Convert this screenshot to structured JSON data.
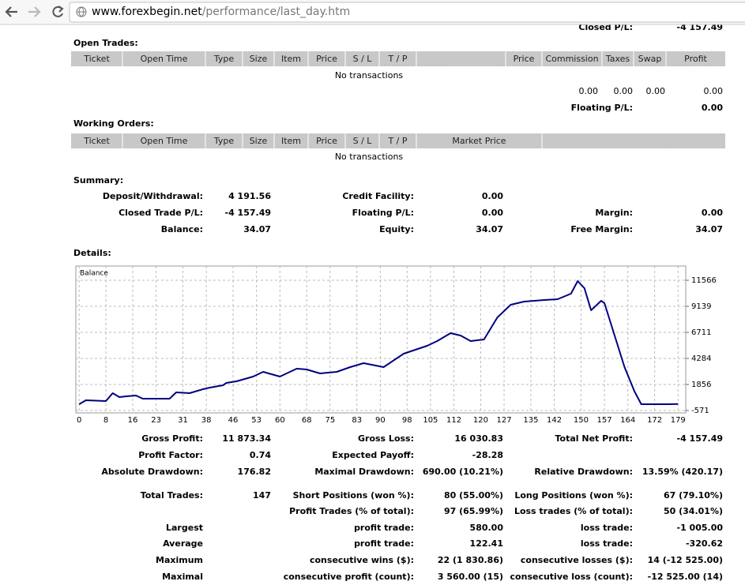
{
  "browser": {
    "url_host": "www.forexbegin.net",
    "url_path": "/performance/last_day.htm"
  },
  "top_cut": {
    "label": "Closed P/L:",
    "value": "-4 157.49"
  },
  "open_trades": {
    "title": "Open Trades:",
    "headers": [
      "Ticket",
      "Open Time",
      "Type",
      "Size",
      "Item",
      "Price",
      "S / L",
      "T / P",
      "Price",
      "Commission",
      "Taxes",
      "Swap",
      "Profit"
    ],
    "empty": "No transactions",
    "totals": [
      "0.00",
      "0.00",
      "0.00",
      "0.00"
    ],
    "floating_label": "Floating P/L:",
    "floating_value": "0.00"
  },
  "working_orders": {
    "title": "Working Orders:",
    "headers": [
      "Ticket",
      "Open Time",
      "Type",
      "Size",
      "Item",
      "Price",
      "S / L",
      "T / P",
      "Market Price"
    ],
    "empty": "No transactions"
  },
  "summary": {
    "title": "Summary:",
    "rows": [
      [
        "Deposit/Withdrawal:",
        "4 191.56",
        "Credit Facility:",
        "0.00",
        null,
        null
      ],
      [
        "Closed Trade P/L:",
        "-4 157.49",
        "Floating P/L:",
        "0.00",
        "Margin:",
        "0.00"
      ],
      [
        "Balance:",
        "34.07",
        "Equity:",
        "34.07",
        "Free Margin:",
        "34.07"
      ]
    ]
  },
  "details": {
    "title": "Details:"
  },
  "chart_data": {
    "type": "line",
    "x": [
      0,
      2,
      8,
      10,
      12,
      14,
      17,
      19,
      27,
      29,
      33,
      37,
      39,
      43,
      44,
      47,
      52,
      55,
      60,
      65,
      68,
      72,
      77,
      81,
      85,
      91,
      97,
      104,
      107,
      111,
      114,
      117,
      121,
      125,
      129,
      133,
      139,
      143,
      147,
      149,
      151,
      153,
      156,
      157,
      163,
      166,
      168,
      176,
      179
    ],
    "series": [
      {
        "name": "Balance",
        "color": "#000080",
        "values": [
          17,
          385,
          312,
          1047,
          680,
          753,
          827,
          532,
          532,
          1121,
          1047,
          1415,
          1562,
          1783,
          2004,
          2151,
          2592,
          3033,
          2592,
          3328,
          3254,
          2886,
          3033,
          3475,
          3843,
          3475,
          4725,
          5461,
          5902,
          6638,
          6417,
          5902,
          6049,
          8109,
          9286,
          9580,
          9727,
          9801,
          10316,
          11493,
          10831,
          8771,
          9654,
          9433,
          3475,
          1194,
          17,
          17,
          34
        ]
      }
    ],
    "xlim": [
      -1,
      181.3
    ],
    "xticks": [
      0,
      8,
      16,
      23,
      31,
      38,
      46,
      53,
      60,
      68,
      75,
      83,
      90,
      98,
      105,
      112,
      120,
      127,
      135,
      142,
      150,
      157,
      164,
      172,
      179
    ],
    "ylim": [
      -792,
      12890
    ],
    "yticks": [
      -571,
      1856,
      4284,
      6711,
      9139,
      11566
    ],
    "grid": true
  },
  "stats": {
    "rows": [
      [
        "Gross Profit:",
        "11 873.34",
        "Gross Loss:",
        "16 030.83",
        "Total Net Profit:",
        "-4 157.49"
      ],
      [
        "Profit Factor:",
        "0.74",
        "Expected Payoff:",
        "-28.28",
        null,
        null
      ],
      [
        "Absolute Drawdown:",
        "176.82",
        "Maximal Drawdown:",
        "690.00 (10.21%)",
        "Relative Drawdown:",
        "13.59% (420.17)"
      ],
      [
        "Total Trades:",
        "147",
        "Short Positions (won %):",
        "80 (55.00%)",
        "Long Positions (won %):",
        "67 (79.10%)"
      ],
      [
        null,
        null,
        "Profit Trades (% of total):",
        "97 (65.99%)",
        "Loss trades (% of total):",
        "50 (34.01%)"
      ],
      [
        "Largest",
        null,
        "profit trade:",
        "580.00",
        "loss trade:",
        "-1 005.00"
      ],
      [
        "Average",
        null,
        "profit trade:",
        "122.41",
        "loss trade:",
        "-320.62"
      ],
      [
        "Maximum",
        null,
        "consecutive wins ($):",
        "22 (1 830.86)",
        "consecutive losses ($):",
        "14 (-12 525.00)"
      ],
      [
        "Maximal",
        null,
        "consecutive profit (count):",
        "3 560.00 (15)",
        "consecutive loss (count):",
        "-12 525.00 (14)"
      ]
    ]
  }
}
